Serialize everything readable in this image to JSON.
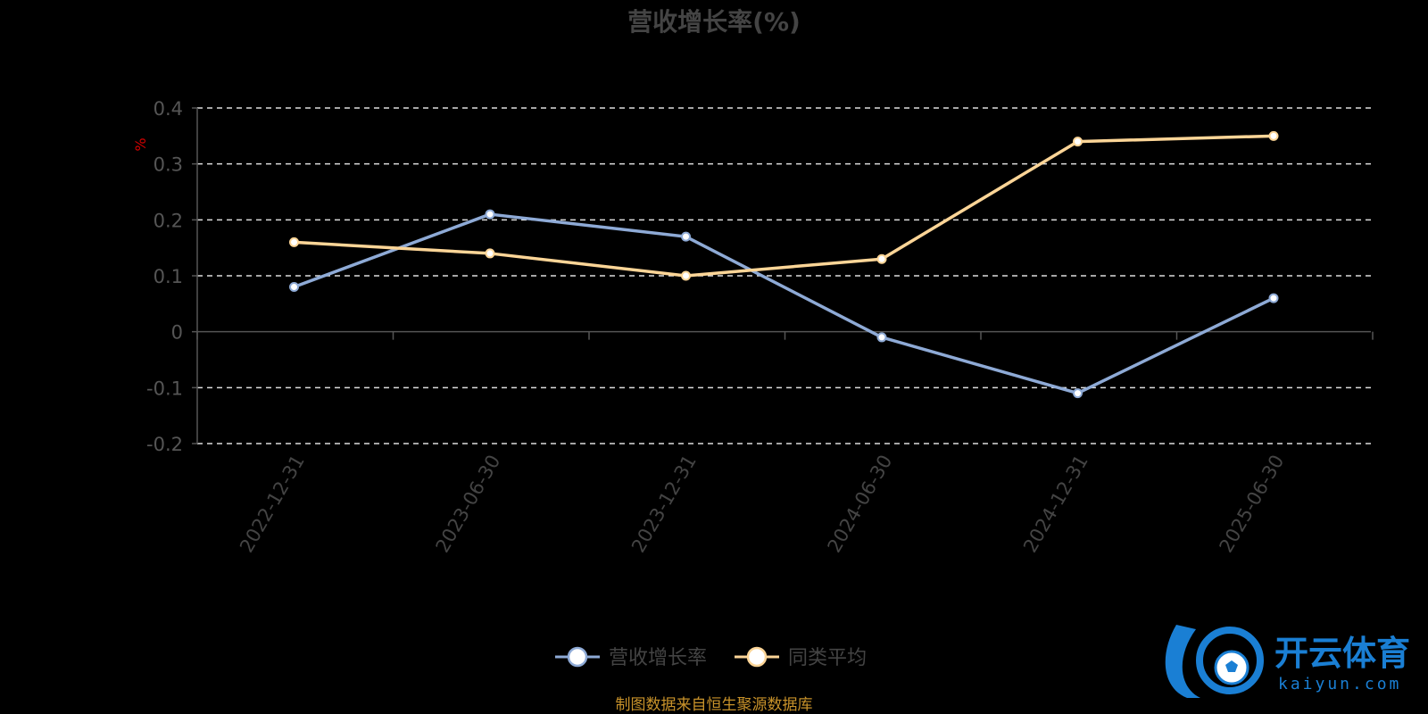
{
  "chart_data": {
    "type": "line",
    "title": "营收增长率(%)",
    "ylabel": "%",
    "ylim": [
      -0.2,
      0.4
    ],
    "yticks": [
      0.4,
      0.3,
      0.2,
      0.1,
      0,
      -0.1,
      -0.2
    ],
    "yticklabels": [
      "0.4",
      "0.3",
      "0.2",
      "0.1",
      "0",
      "-0.1",
      "-0.2"
    ],
    "categories": [
      "2022-12-31",
      "2023-06-30",
      "2023-12-31",
      "2024-06-30",
      "2024-12-31",
      "2025-06-30"
    ],
    "series": [
      {
        "name": "营收增长率",
        "color": "#8eaad6",
        "values": [
          0.08,
          0.21,
          0.17,
          -0.01,
          -0.11,
          0.06
        ]
      },
      {
        "name": "同类平均",
        "color": "#fcd597",
        "values": [
          0.16,
          0.14,
          0.1,
          0.13,
          0.34,
          0.35
        ]
      }
    ],
    "grid": true,
    "legend_position": "bottom-center"
  },
  "source_note": "制图数据来自恒生聚源数据库",
  "watermark": {
    "text_cn": "开云体育",
    "text_en": "kaiyun.com",
    "color": "#1a7fd4"
  }
}
